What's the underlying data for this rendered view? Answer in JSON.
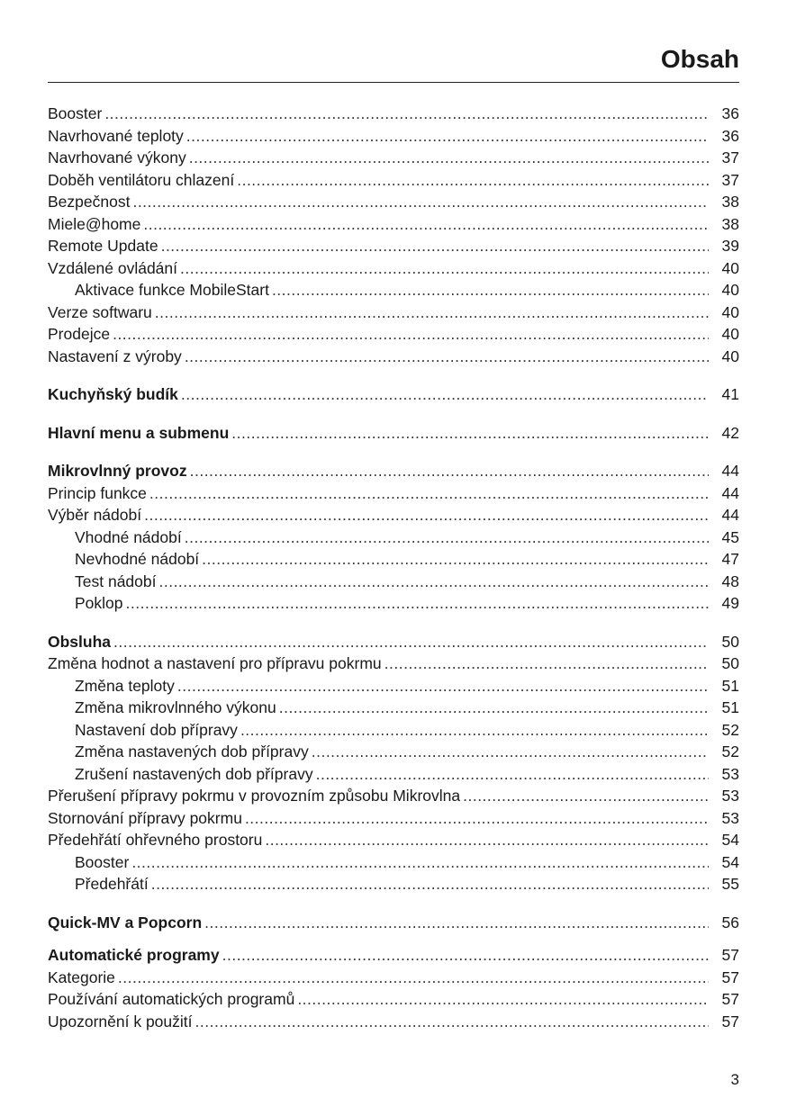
{
  "header": {
    "title": "Obsah"
  },
  "footer": {
    "page_number": "3"
  },
  "toc": {
    "groups": [
      {
        "entries": [
          {
            "title": "Booster",
            "page": "36",
            "level": 1,
            "bold": false
          },
          {
            "title": "Navrhované teploty",
            "page": "36",
            "level": 1,
            "bold": false
          },
          {
            "title": "Navrhované výkony",
            "page": "37",
            "level": 1,
            "bold": false
          },
          {
            "title": "Doběh ventilátoru chlazení",
            "page": "37",
            "level": 1,
            "bold": false
          },
          {
            "title": "Bezpečnost",
            "page": "38",
            "level": 1,
            "bold": false
          },
          {
            "title": "Miele@home",
            "page": "38",
            "level": 1,
            "bold": false
          },
          {
            "title": "Remote Update",
            "page": "39",
            "level": 1,
            "bold": false
          },
          {
            "title": "Vzdálené ovládání",
            "page": "40",
            "level": 1,
            "bold": false
          },
          {
            "title": "Aktivace funkce MobileStart",
            "page": "40",
            "level": 2,
            "bold": false
          },
          {
            "title": "Verze softwaru",
            "page": "40",
            "level": 1,
            "bold": false
          },
          {
            "title": "Prodejce",
            "page": "40",
            "level": 1,
            "bold": false
          },
          {
            "title": "Nastavení z výroby",
            "page": "40",
            "level": 1,
            "bold": false
          }
        ]
      },
      {
        "entries": [
          {
            "title": "Kuchyňský budík",
            "page": "41",
            "level": 1,
            "bold": true
          }
        ]
      },
      {
        "entries": [
          {
            "title": "Hlavní menu a submenu",
            "page": "42",
            "level": 1,
            "bold": true
          }
        ]
      },
      {
        "entries": [
          {
            "title": "Mikrovlnný provoz",
            "page": "44",
            "level": 1,
            "bold": true
          },
          {
            "title": "Princip funkce",
            "page": "44",
            "level": 1,
            "bold": false
          },
          {
            "title": "Výběr nádobí",
            "page": "44",
            "level": 1,
            "bold": false
          },
          {
            "title": "Vhodné nádobí",
            "page": "45",
            "level": 2,
            "bold": false
          },
          {
            "title": "Nevhodné nádobí",
            "page": "47",
            "level": 2,
            "bold": false
          },
          {
            "title": "Test nádobí",
            "page": "48",
            "level": 2,
            "bold": false
          },
          {
            "title": "Poklop",
            "page": "49",
            "level": 2,
            "bold": false
          }
        ]
      },
      {
        "entries": [
          {
            "title": "Obsluha",
            "page": "50",
            "level": 1,
            "bold": true
          },
          {
            "title": "Změna hodnot a nastavení pro přípravu pokrmu",
            "page": "50",
            "level": 1,
            "bold": false
          },
          {
            "title": "Změna teploty",
            "page": "51",
            "level": 2,
            "bold": false
          },
          {
            "title": "Změna mikrovlnného výkonu",
            "page": "51",
            "level": 2,
            "bold": false
          },
          {
            "title": "Nastavení dob přípravy",
            "page": "52",
            "level": 2,
            "bold": false
          },
          {
            "title": "Změna nastavených dob přípravy",
            "page": "52",
            "level": 2,
            "bold": false
          },
          {
            "title": "Zrušení nastavených dob přípravy",
            "page": "53",
            "level": 2,
            "bold": false
          },
          {
            "title": "Přerušení přípravy pokrmu v provozním způsobu Mikrovlna",
            "page": "53",
            "level": 1,
            "bold": false
          },
          {
            "title": "Stornování přípravy pokrmu",
            "page": "53",
            "level": 1,
            "bold": false
          },
          {
            "title": "Předehřátí ohřevného prostoru",
            "page": "54",
            "level": 1,
            "bold": false
          },
          {
            "title": "Booster",
            "page": "54",
            "level": 2,
            "bold": false
          },
          {
            "title": "Předehřátí",
            "page": "55",
            "level": 2,
            "bold": false
          }
        ]
      },
      {
        "entries": [
          {
            "title": "Quick-MV a Popcorn",
            "page": "56",
            "level": 1,
            "bold": true
          }
        ]
      },
      {
        "entries": [
          {
            "title": "Automatické programy",
            "page": "57",
            "level": 1,
            "bold": true
          },
          {
            "title": "Kategorie",
            "page": "57",
            "level": 1,
            "bold": false
          },
          {
            "title": "Používání automatických programů",
            "page": "57",
            "level": 1,
            "bold": false
          },
          {
            "title": "Upozornění k použití",
            "page": "57",
            "level": 1,
            "bold": false
          }
        ]
      }
    ]
  }
}
